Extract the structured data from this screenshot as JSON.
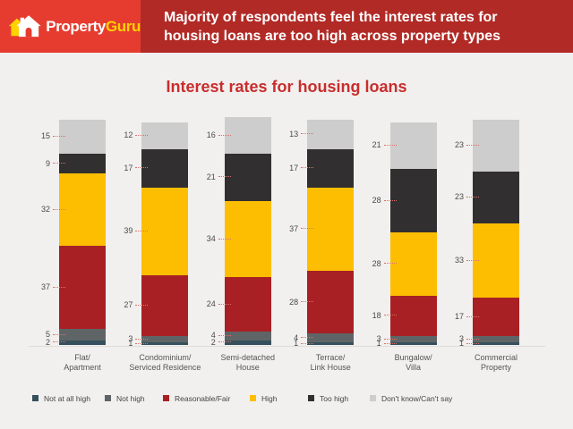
{
  "header": {
    "brand": {
      "first": "Property",
      "second": "Guru"
    },
    "headline": {
      "line1": "Majority of respondents feel the interest rates for",
      "line2": "housing loans are too high across property types"
    }
  },
  "colors": {
    "page_bg": "#f1f0ee",
    "header_red": "#e63c30",
    "header_dark_red": "#b12a26",
    "title_red": "#c92d2d",
    "brand_yellow": "#ffd200"
  },
  "chart_data": {
    "type": "bar",
    "stacked": true,
    "orientation": "vertical",
    "title": "Interest rates for housing loans",
    "categories": [
      [
        "Flat/",
        "Apartment"
      ],
      [
        "Condominium/",
        "Serviced Residence"
      ],
      [
        "Semi-detached",
        "House"
      ],
      [
        "Terrace/",
        "Link House"
      ],
      [
        "Bungalow/",
        "Villa"
      ],
      [
        "Commercial",
        "Property"
      ]
    ],
    "series": [
      {
        "name": "Not at all high",
        "color": "#35505c",
        "values": [
          2,
          1,
          2,
          1,
          1,
          1
        ]
      },
      {
        "name": "Not high",
        "color": "#5f6567",
        "values": [
          5,
          3,
          4,
          4,
          3,
          3
        ]
      },
      {
        "name": "Reasonable/Fair",
        "color": "#a82024",
        "values": [
          37,
          27,
          24,
          28,
          18,
          17
        ]
      },
      {
        "name": "High",
        "color": "#fdbe02",
        "values": [
          32,
          39,
          34,
          37,
          28,
          33
        ]
      },
      {
        "name": "Too high",
        "color": "#312f2f",
        "values": [
          9,
          17,
          21,
          17,
          28,
          23
        ]
      },
      {
        "name": "Don't know/Can't say",
        "color": "#cdcdcd",
        "values": [
          15,
          12,
          16,
          13,
          21,
          23
        ]
      }
    ],
    "value_labels": "outside-left",
    "legend_position": "bottom",
    "grid": false,
    "ylim": [
      0,
      101
    ]
  }
}
